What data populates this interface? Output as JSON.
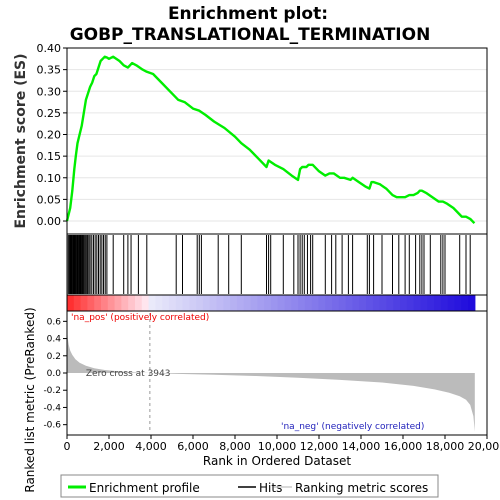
{
  "chart_data": {
    "type": "line",
    "title_lines": [
      "Enrichment plot:",
      "GOBP_TRANSLATIONAL_TERMINATION"
    ],
    "es_panel": {
      "ylabel": "Enrichment score (ES)",
      "ylim": [
        -0.03,
        0.4
      ],
      "yticks": [
        "0.00",
        "0.05",
        "0.10",
        "0.15",
        "0.20",
        "0.25",
        "0.30",
        "0.35",
        "0.40"
      ],
      "ytick_values": [
        0.0,
        0.05,
        0.1,
        0.15,
        0.2,
        0.25,
        0.3,
        0.35,
        0.4
      ],
      "series_name": "Enrichment profile",
      "series_color": "#00ee00",
      "x": [
        0,
        150,
        250,
        350,
        420,
        500,
        600,
        700,
        800,
        900,
        1000,
        1100,
        1200,
        1300,
        1400,
        1500,
        1600,
        1700,
        1800,
        1900,
        2000,
        2200,
        2500,
        2700,
        2900,
        3000,
        3100,
        3300,
        3600,
        3800,
        4100,
        4500,
        5000,
        5300,
        5600,
        6000,
        6300,
        6600,
        7000,
        7500,
        8000,
        8300,
        8700,
        9100,
        9500,
        9600,
        9900,
        10300,
        10700,
        11000,
        11100,
        11200,
        11400,
        11500,
        11700,
        12000,
        12300,
        12500,
        12700,
        13000,
        13200,
        13500,
        13600,
        13900,
        14200,
        14400,
        14500,
        14600,
        14900,
        15200,
        15500,
        15700,
        15900,
        16100,
        16300,
        16500,
        16700,
        16800,
        16900,
        17100,
        17400,
        17700,
        17900,
        18100,
        18400,
        18700,
        18800,
        19000,
        19200,
        19400
      ],
      "y": [
        0.0,
        0.03,
        0.07,
        0.12,
        0.15,
        0.18,
        0.2,
        0.22,
        0.25,
        0.28,
        0.295,
        0.31,
        0.32,
        0.335,
        0.34,
        0.355,
        0.37,
        0.375,
        0.38,
        0.378,
        0.375,
        0.38,
        0.37,
        0.36,
        0.355,
        0.36,
        0.365,
        0.36,
        0.35,
        0.345,
        0.34,
        0.32,
        0.295,
        0.28,
        0.275,
        0.26,
        0.255,
        0.245,
        0.23,
        0.215,
        0.195,
        0.18,
        0.165,
        0.145,
        0.125,
        0.14,
        0.13,
        0.12,
        0.105,
        0.095,
        0.12,
        0.125,
        0.125,
        0.13,
        0.13,
        0.115,
        0.105,
        0.11,
        0.11,
        0.1,
        0.1,
        0.095,
        0.1,
        0.09,
        0.08,
        0.075,
        0.09,
        0.09,
        0.085,
        0.075,
        0.06,
        0.055,
        0.055,
        0.055,
        0.06,
        0.06,
        0.065,
        0.07,
        0.07,
        0.065,
        0.055,
        0.045,
        0.045,
        0.04,
        0.03,
        0.015,
        0.01,
        0.01,
        0.005,
        -0.005
      ]
    },
    "hits_panel": {
      "series_name": "Hits",
      "hit_positions": [
        60,
        110,
        150,
        190,
        230,
        270,
        310,
        340,
        380,
        420,
        460,
        500,
        540,
        580,
        620,
        660,
        700,
        740,
        780,
        820,
        870,
        920,
        980,
        1040,
        1100,
        1180,
        1260,
        1340,
        1420,
        1500,
        1580,
        1660,
        1740,
        1820,
        1900,
        2200,
        2700,
        2900,
        3050,
        3400,
        3800,
        5200,
        5500,
        6200,
        6300,
        6400,
        7200,
        7700,
        8300,
        9500,
        9600,
        9700,
        10300,
        10800,
        11000,
        11100,
        11200,
        11300,
        11450,
        11600,
        11700,
        12300,
        12600,
        12800,
        13100,
        13400,
        13600,
        14300,
        14400,
        14600,
        15000,
        15500,
        15800,
        16100,
        16300,
        16600,
        16800,
        16900,
        17000,
        17300,
        17800,
        17900,
        18000,
        18700,
        19000,
        19200
      ]
    },
    "metric_panel": {
      "ylabel": "Ranked list metric (PreRanked)",
      "ylim": [
        -0.72,
        0.72
      ],
      "yticks": [
        "0.6",
        "0.4",
        "0.2",
        "0.0",
        "-0.2",
        "-0.4",
        "-0.6"
      ],
      "ytick_values": [
        0.6,
        0.4,
        0.2,
        0.0,
        -0.2,
        -0.4,
        -0.6
      ],
      "series_name": "Ranking metric scores",
      "series_color": "#bbbbbb",
      "x": [
        0,
        30,
        80,
        150,
        250,
        400,
        600,
        900,
        1300,
        1800,
        2500,
        3200,
        3943,
        5000,
        7000,
        9000,
        11000,
        13000,
        15000,
        16500,
        17500,
        18200,
        18700,
        19000,
        19200,
        19350,
        19420
      ],
      "y": [
        0.58,
        0.42,
        0.33,
        0.26,
        0.21,
        0.16,
        0.12,
        0.085,
        0.055,
        0.035,
        0.018,
        0.007,
        0.0,
        -0.008,
        -0.02,
        -0.035,
        -0.055,
        -0.08,
        -0.11,
        -0.15,
        -0.19,
        -0.23,
        -0.27,
        -0.31,
        -0.37,
        -0.5,
        -0.68
      ],
      "zero_cross_label": "Zero cross at 3943",
      "zero_cross": 3943,
      "pos_label": "'na_pos' (positively correlated)",
      "neg_label": "'na_neg' (negatively correlated)"
    },
    "xlabel": "Rank in Ordered Dataset",
    "xlim": [
      0,
      20000
    ],
    "xticks": [
      "0",
      "2,000",
      "4,000",
      "6,000",
      "8,000",
      "10,000",
      "12,000",
      "14,000",
      "16,000",
      "18,000",
      "20,000"
    ],
    "xtick_values": [
      0,
      2000,
      4000,
      6000,
      8000,
      10000,
      12000,
      14000,
      16000,
      18000,
      20000
    ],
    "n_genes": 19420,
    "legend": {
      "placement": "bottom",
      "entries": [
        "Enrichment profile",
        "Hits",
        "Ranking metric scores"
      ]
    }
  }
}
